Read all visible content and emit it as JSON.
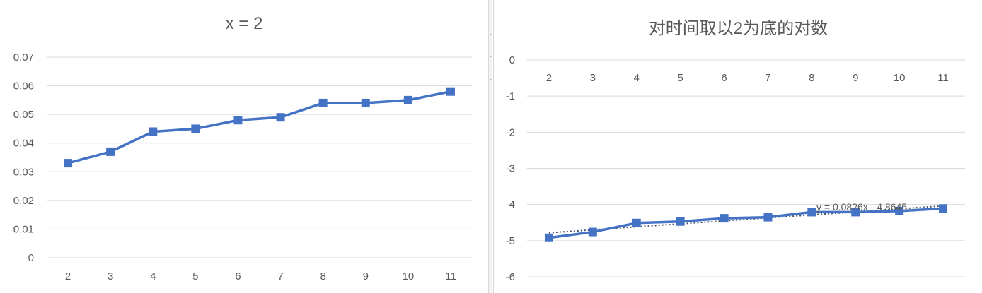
{
  "chart_data": [
    {
      "type": "line",
      "title": "x = 2",
      "categories": [
        "2",
        "3",
        "4",
        "5",
        "6",
        "7",
        "8",
        "9",
        "10",
        "11"
      ],
      "series": [
        {
          "values": [
            0.033,
            0.037,
            0.044,
            0.045,
            0.048,
            0.049,
            0.054,
            0.054,
            0.055,
            0.058
          ]
        }
      ],
      "ylim": [
        0,
        0.07
      ],
      "yticks": [
        "0",
        "0.01",
        "0.02",
        "0.03",
        "0.04",
        "0.05",
        "0.06",
        "0.07"
      ],
      "grid": true,
      "markers": "square",
      "color": "#4472c4"
    },
    {
      "type": "line",
      "title": "对时间取以2为底的对数",
      "categories": [
        "2",
        "3",
        "4",
        "5",
        "6",
        "7",
        "8",
        "9",
        "10",
        "11"
      ],
      "series": [
        {
          "values": [
            -4.92,
            -4.76,
            -4.51,
            -4.47,
            -4.38,
            -4.35,
            -4.21,
            -4.21,
            -4.18,
            -4.11
          ]
        }
      ],
      "trendline": {
        "type": "linear",
        "label": "y = 0.0826x - 4.8645",
        "style": "dotted"
      },
      "ylim": [
        -6,
        0
      ],
      "yticks": [
        "0",
        "-1",
        "-2",
        "-3",
        "-4",
        "-5",
        "-6"
      ],
      "grid": true,
      "markers": "square",
      "color": "#4472c4"
    }
  ]
}
